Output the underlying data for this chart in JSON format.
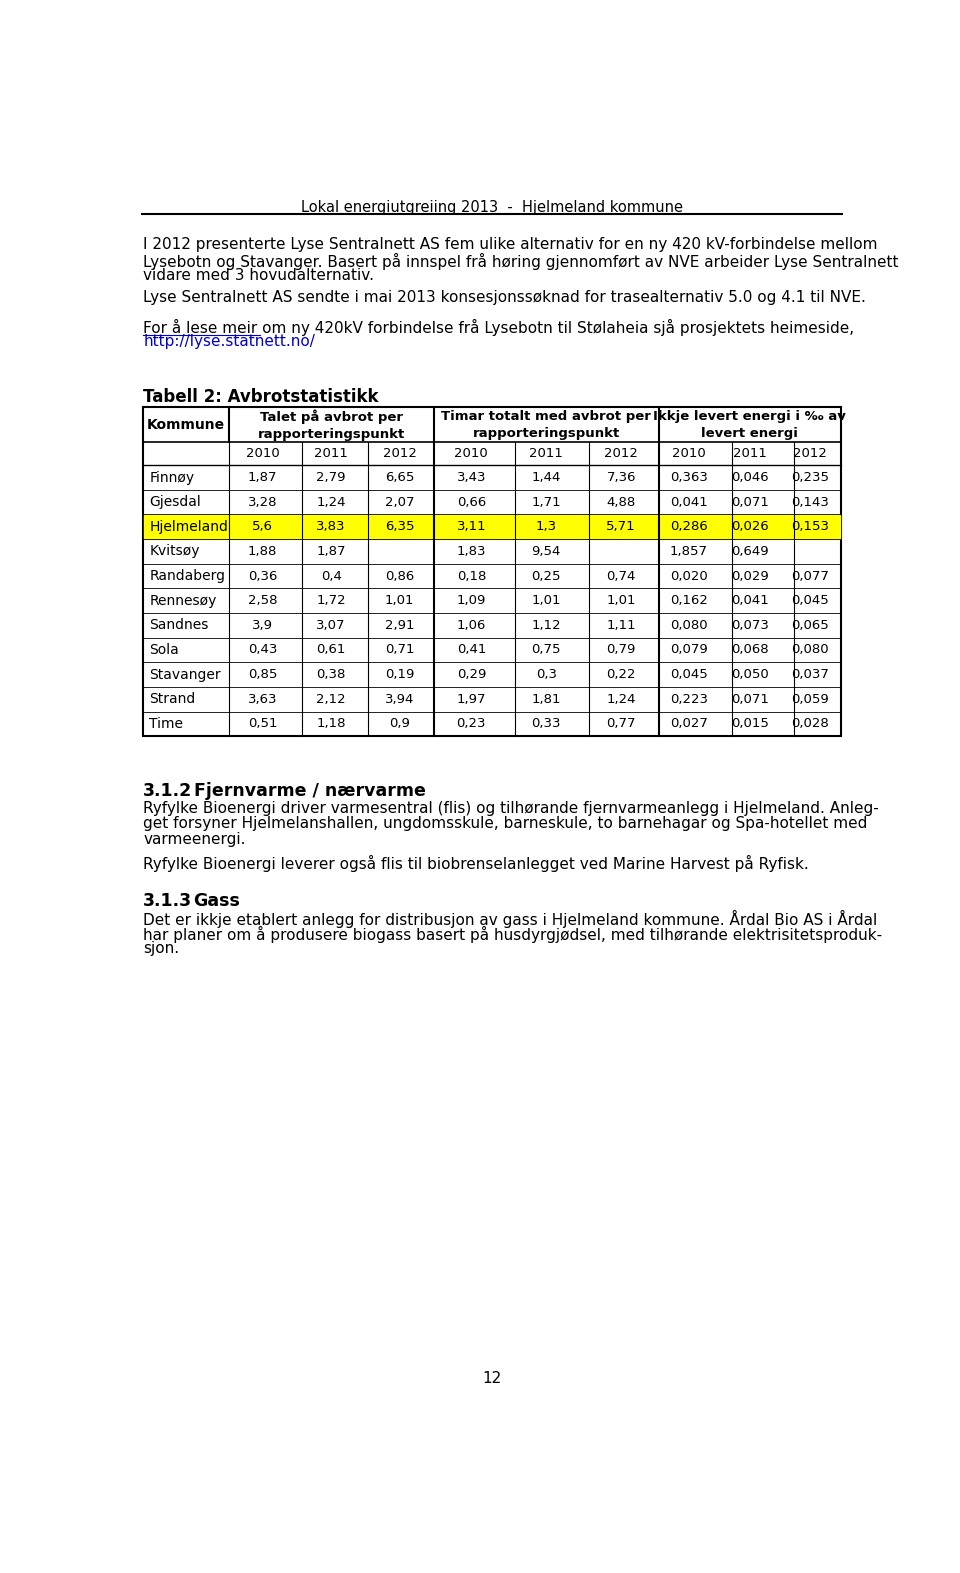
{
  "header": "Lokal energiutgreiing 2013  -  Hjelmeland kommune",
  "para1_lines": [
    "I 2012 presenterte Lyse Sentralnett AS fem ulike alternativ for en ny 420 kV-forbindelse mellom",
    "Lysebotn og Stavanger. Basert på innspel frå høring gjennomført av NVE arbeider Lyse Sentralnett",
    "vidare med 3 hovudalternativ."
  ],
  "para2": "Lyse Sentralnett AS sendte i mai 2013 konsesjonssøknad for trasealternativ 5.0 og 4.1 til NVE.",
  "para3_main": "For å lese meir om ny 420kV forbindelse frå Lysebotn til Stølaheia sjå prosjektets heimeside,",
  "para3_link": "http://lyse.statnett.no/",
  "table_title": "Tabell 2: Avbrotstatistikk",
  "year_headers": [
    "2010",
    "2011",
    "2012"
  ],
  "group_headers": [
    "Talet på avbrot per\nrapporteringspunkt",
    "Timar totalt med avbrot per\nrapporteringspunkt",
    "Ikkje levert energi i ‰ av\nlevert energi"
  ],
  "rows": [
    [
      "Finnøy",
      "1,87",
      "2,79",
      "6,65",
      "3,43",
      "1,44",
      "7,36",
      "0,363",
      "0,046",
      "0,235"
    ],
    [
      "Gjesdal",
      "3,28",
      "1,24",
      "2,07",
      "0,66",
      "1,71",
      "4,88",
      "0,041",
      "0,071",
      "0,143"
    ],
    [
      "Hjelmeland",
      "5,6",
      "3,83",
      "6,35",
      "3,11",
      "1,3",
      "5,71",
      "0,286",
      "0,026",
      "0,153"
    ],
    [
      "Kvitsøy",
      "1,88",
      "1,87",
      "",
      "1,83",
      "9,54",
      "",
      "1,857",
      "0,649",
      ""
    ],
    [
      "Randaberg",
      "0,36",
      "0,4",
      "0,86",
      "0,18",
      "0,25",
      "0,74",
      "0,020",
      "0,029",
      "0,077"
    ],
    [
      "Rennesøy",
      "2,58",
      "1,72",
      "1,01",
      "1,09",
      "1,01",
      "1,01",
      "0,162",
      "0,041",
      "0,045"
    ],
    [
      "Sandnes",
      "3,9",
      "3,07",
      "2,91",
      "1,06",
      "1,12",
      "1,11",
      "0,080",
      "0,073",
      "0,065"
    ],
    [
      "Sola",
      "0,43",
      "0,61",
      "0,71",
      "0,41",
      "0,75",
      "0,79",
      "0,079",
      "0,068",
      "0,080"
    ],
    [
      "Stavanger",
      "0,85",
      "0,38",
      "0,19",
      "0,29",
      "0,3",
      "0,22",
      "0,045",
      "0,050",
      "0,037"
    ],
    [
      "Strand",
      "3,63",
      "2,12",
      "3,94",
      "1,97",
      "1,81",
      "1,24",
      "0,223",
      "0,071",
      "0,059"
    ],
    [
      "Time",
      "0,51",
      "1,18",
      "0,9",
      "0,23",
      "0,33",
      "0,77",
      "0,027",
      "0,015",
      "0,028"
    ]
  ],
  "highlighted_row": "Hjelmeland",
  "highlight_color": "#FFFF00",
  "section_312_number": "3.1.2",
  "section_312_heading": "Fjernvarme / nærvarme",
  "section_312_para1_lines": [
    "Ryfylke Bioenergi driver varmesentral (flis) og tilhørande fjernvarmeanlegg i Hjelmeland. Anleg-",
    "get forsyner Hjelmelanshallen, ungdomsskule, barneskule, to barnehagar og Spa-hotellet med",
    "varmeenergi."
  ],
  "section_312_para2": "Ryfylke Bioenergi leverer også flis til biobrenselanlegget ved Marine Harvest på Ryfisk.",
  "section_313_number": "3.1.3",
  "section_313_heading": "Gass",
  "section_313_para_lines": [
    "Det er ikkje etablert anlegg for distribusjon av gass i Hjelmeland kommune. Årdal Bio AS i Årdal",
    "har planer om å produsere biogass basert på husdyrgjødsel, med tilhørande elektrisitetsproduk-",
    "sjon."
  ],
  "page_number": "12",
  "background_color": "#ffffff",
  "text_color": "#000000",
  "link_color": "#0000CC"
}
